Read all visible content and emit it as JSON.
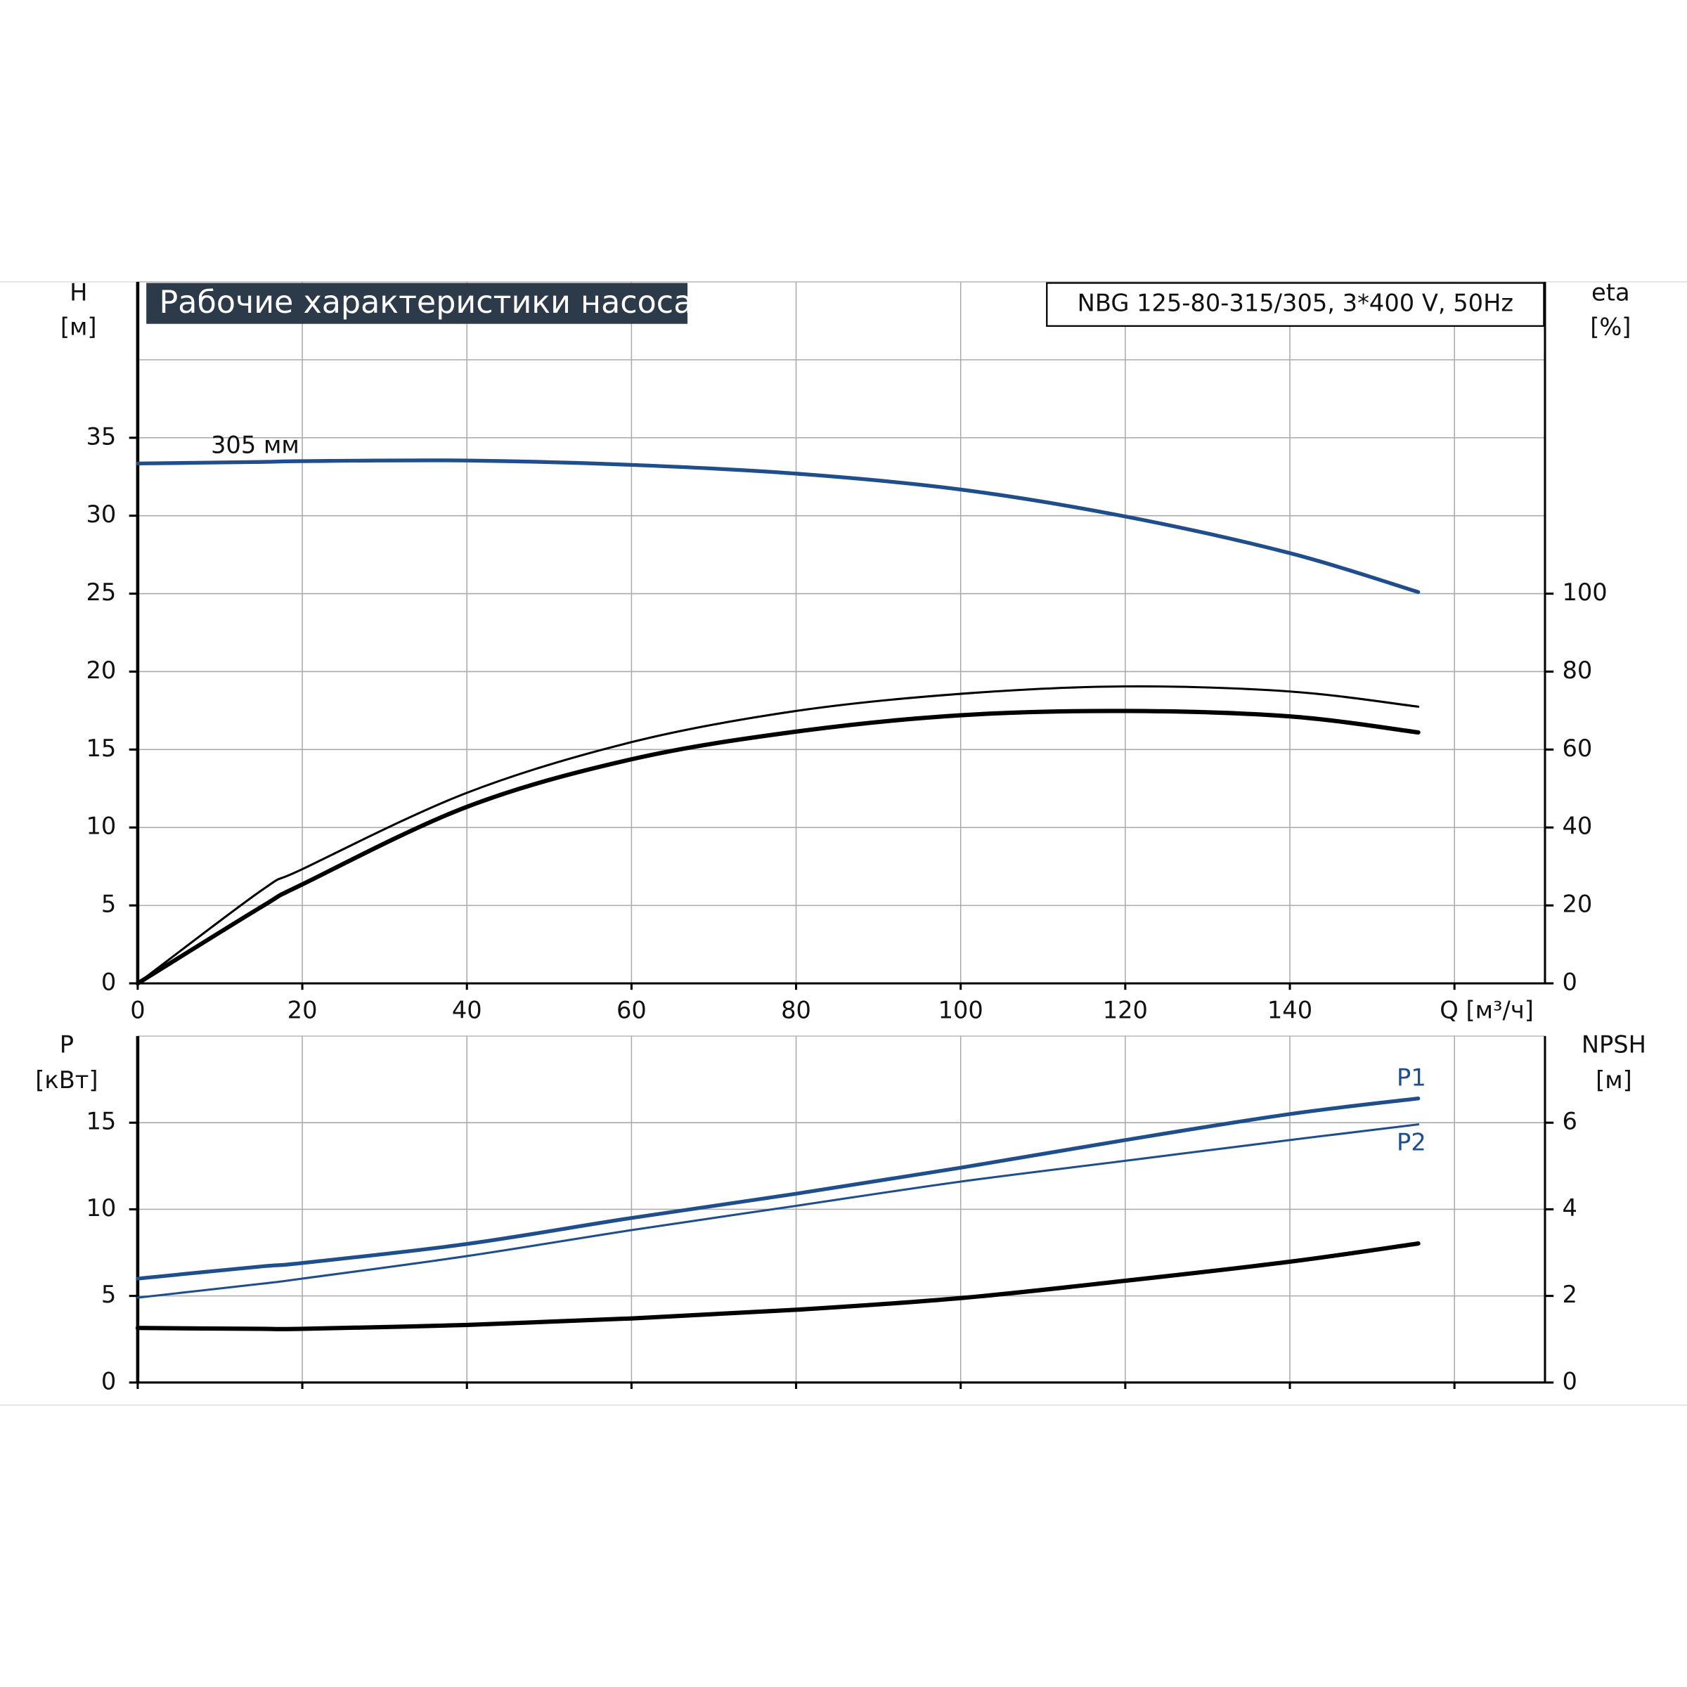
{
  "chart_data": [
    {
      "type": "line",
      "title": "Рабочие характеристики насоса",
      "subtitle": "NBG 125-80-315/305, 3*400 V, 50Hz",
      "y_label": [
        "H",
        "[м]"
      ],
      "y2_label": [
        "eta",
        "[%]"
      ],
      "x": [
        0,
        15,
        20,
        40,
        60,
        80,
        100,
        120,
        140,
        155.6
      ],
      "xlim": [
        0,
        171
      ],
      "xticks": [
        0,
        20,
        40,
        60,
        80,
        100,
        120,
        140,
        {
          "value": 160,
          "label": "Q [м³/ч]"
        }
      ],
      "ylim": [
        0,
        45
      ],
      "yticks": [
        0,
        5,
        10,
        15,
        20,
        25,
        30,
        35,
        {
          "value": 40,
          "label": null
        }
      ],
      "y2lim": [
        0,
        180
      ],
      "y2ticks": [
        0,
        20,
        40,
        60,
        80,
        100
      ],
      "grid": true,
      "annotations": [
        {
          "text": "305 мм"
        }
      ],
      "series": [
        {
          "color": "#1f4e8c",
          "width": 3.5,
          "values": [
            33.35,
            33.45,
            33.5,
            33.54,
            33.26,
            32.7,
            31.68,
            29.95,
            27.6,
            25.1
          ]
        },
        {
          "color": "#000000",
          "width": 2,
          "axis": "y2",
          "values": [
            0,
            23.8,
            29.3,
            48.9,
            61.9,
            69.9,
            74.3,
            76.2,
            74.9,
            71.0
          ]
        },
        {
          "color": "#000000",
          "width": 4,
          "axis": "y2",
          "values": [
            0,
            19.6,
            25.4,
            45.3,
            57.5,
            64.6,
            68.8,
            69.9,
            68.5,
            64.4
          ]
        }
      ]
    },
    {
      "type": "line",
      "y_label": [
        "P",
        "[кВт]"
      ],
      "y2_label": [
        "NPSH",
        "[м]"
      ],
      "x": [
        0,
        15,
        20,
        40,
        60,
        80,
        100,
        120,
        140,
        155.6
      ],
      "xlim": [
        0,
        171
      ],
      "xticks": [
        0,
        20,
        40,
        60,
        80,
        100,
        120,
        140,
        160
      ],
      "show_xtick_labels": false,
      "ylim": [
        0,
        20
      ],
      "yticks": [
        0,
        5,
        10,
        15
      ],
      "y2lim": [
        0,
        8
      ],
      "y2ticks": [
        0,
        2,
        4,
        6
      ],
      "grid": true,
      "series": [
        {
          "name": "P1",
          "color": "#1f4e8c",
          "width": 3.5,
          "values": [
            6.0,
            6.7,
            6.9,
            8.0,
            9.5,
            10.9,
            12.4,
            14.0,
            15.5,
            16.4
          ]
        },
        {
          "name": "P2",
          "color": "#1f4e8c",
          "width": 2,
          "values": [
            4.9,
            5.7,
            6.0,
            7.3,
            8.8,
            10.2,
            11.6,
            12.8,
            14.0,
            14.9
          ]
        },
        {
          "color": "#000000",
          "width": 4,
          "axis": "y2",
          "values": [
            1.26,
            1.24,
            1.24,
            1.33,
            1.48,
            1.68,
            1.95,
            2.35,
            2.79,
            3.21
          ]
        }
      ]
    }
  ]
}
